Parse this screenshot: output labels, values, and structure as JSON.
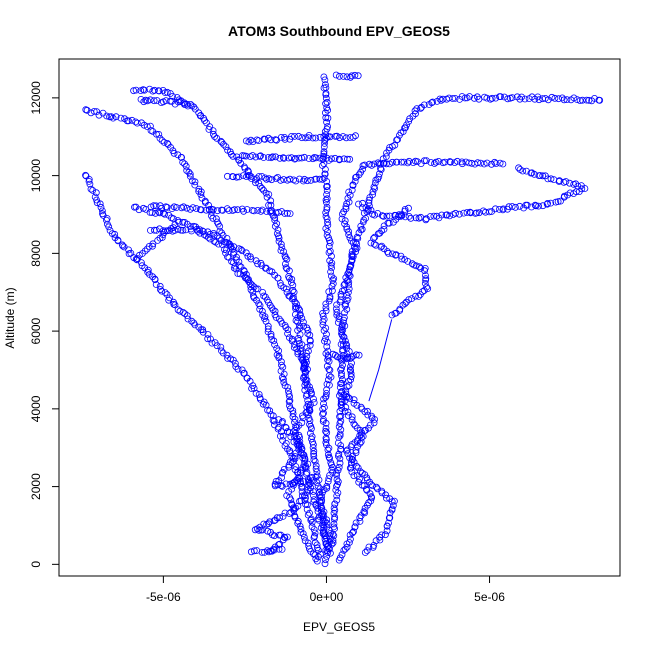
{
  "chart_data": {
    "type": "scatter",
    "title": "ATOM3 Southbound EPV_GEOS5",
    "xlabel": "EPV_GEOS5",
    "ylabel": "Altitude (m)",
    "xlim": [
      -8.2e-06,
      9e-06
    ],
    "ylim": [
      -300,
      13000
    ],
    "x_ticks": [
      {
        "value": -5e-06,
        "label": "-5e-06"
      },
      {
        "value": 0,
        "label": "0e+00"
      },
      {
        "value": 5e-06,
        "label": "5e-06"
      }
    ],
    "y_ticks": [
      {
        "value": 0,
        "label": "0"
      },
      {
        "value": 2000,
        "label": "2000"
      },
      {
        "value": 4000,
        "label": "4000"
      },
      {
        "value": 6000,
        "label": "6000"
      },
      {
        "value": 8000,
        "label": "8000"
      },
      {
        "value": 10000,
        "label": "10000"
      },
      {
        "value": 12000,
        "label": "12000"
      }
    ],
    "marker": "open-circle",
    "color": "#0000ff",
    "grid": false,
    "legend": "none",
    "series": [
      {
        "points": [
          [
            0.0,
            50
          ],
          [
            1e-07,
            800
          ],
          [
            -2e-07,
            1600
          ],
          [
            2e-07,
            2400
          ],
          [
            0.0,
            3200
          ],
          [
            -1e-07,
            4000
          ],
          [
            1e-07,
            4800
          ],
          [
            0.0,
            5600
          ],
          [
            -1e-07,
            6400
          ],
          [
            2e-07,
            7200
          ],
          [
            1e-07,
            8000
          ],
          [
            0.0,
            8800
          ],
          [
            0.0,
            9600
          ],
          [
            -1e-07,
            10400
          ],
          [
            0.0,
            11200
          ],
          [
            0.0,
            12000
          ],
          [
            -1e-07,
            12600
          ]
        ]
      },
      {
        "points": [
          [
            -3e-07,
            100
          ],
          [
            -8e-07,
            900
          ],
          [
            -1.2e-06,
            1800
          ],
          [
            -6e-07,
            2600
          ],
          [
            -1e-06,
            3400
          ],
          [
            -4e-07,
            4200
          ],
          [
            -7e-07,
            5000
          ],
          [
            -5e-07,
            5800
          ],
          [
            -9e-07,
            6600
          ],
          [
            -1.5e-06,
            7400
          ],
          [
            -2.5e-06,
            8000
          ],
          [
            -3.5e-06,
            8500
          ],
          [
            -5e-06,
            9000
          ],
          [
            -6e-06,
            9200
          ]
        ]
      },
      {
        "points": [
          [
            4e-07,
            120
          ],
          [
            9e-07,
            1000
          ],
          [
            1.4e-06,
            1700
          ],
          [
            7e-07,
            2500
          ],
          [
            1.1e-06,
            3300
          ],
          [
            5e-07,
            4100
          ],
          [
            8e-07,
            4900
          ],
          [
            6e-07,
            5700
          ],
          [
            3e-07,
            6500
          ],
          [
            6e-07,
            7300
          ],
          [
            9e-07,
            8100
          ],
          [
            5e-07,
            8900
          ],
          [
            8e-07,
            9800
          ],
          [
            1.2e-06,
            10300
          ],
          [
            3e-06,
            10350
          ],
          [
            5.5e-06,
            10300
          ]
        ]
      },
      {
        "points": [
          [
            -1.8e-06,
            300
          ],
          [
            -1.2e-06,
            700
          ],
          [
            -2.2e-06,
            900
          ],
          [
            -1e-06,
            1400
          ],
          [
            -4e-07,
            2200
          ],
          [
            -1.6e-06,
            2000
          ],
          [
            -8e-07,
            3000
          ],
          [
            -1.5e-06,
            3800
          ]
        ]
      },
      {
        "points": [
          [
            1.2e-06,
            300
          ],
          [
            1.8e-06,
            800
          ],
          [
            2.1e-06,
            1600
          ],
          [
            1.3e-06,
            2100
          ],
          [
            6e-07,
            2900
          ],
          [
            1.5e-06,
            3700
          ],
          [
            4e-07,
            4500
          ]
        ]
      },
      {
        "points": [
          [
            -2e-07,
            200
          ],
          [
            -5e-07,
            1200
          ],
          [
            -9e-07,
            2400
          ],
          [
            -1.3e-06,
            3200
          ],
          [
            -1.8e-06,
            4000
          ],
          [
            -2.6e-06,
            5000
          ],
          [
            -3.8e-06,
            6000
          ],
          [
            -4.8e-06,
            6800
          ],
          [
            -5.5e-06,
            7600
          ],
          [
            -6.5e-06,
            8400
          ],
          [
            -7.4e-06,
            10100
          ]
        ]
      },
      {
        "points": [
          [
            1e-07,
            300
          ],
          [
            -5e-07,
            2000
          ],
          [
            -1.5e-06,
            5500
          ],
          [
            -2.5e-06,
            7500
          ],
          [
            -3.5e-06,
            9000
          ],
          [
            -4.5e-06,
            10500
          ],
          [
            -5.5e-06,
            11300
          ],
          [
            -7.5e-06,
            11700
          ]
        ]
      },
      {
        "points": [
          [
            0.0,
            400
          ],
          [
            -4e-07,
            3000
          ],
          [
            -1e-06,
            7000
          ],
          [
            -1.8e-06,
            9500
          ],
          [
            -2.6e-06,
            10300
          ],
          [
            -3.4e-06,
            11000
          ],
          [
            -4e-06,
            11700
          ],
          [
            -5e-06,
            12200
          ],
          [
            -6e-06,
            12200
          ]
        ]
      },
      {
        "points": [
          [
            2e-07,
            500
          ],
          [
            4e-07,
            3000
          ],
          [
            5e-07,
            6000
          ],
          [
            8e-07,
            8000
          ],
          [
            1.2e-06,
            9000
          ],
          [
            1.8e-06,
            10500
          ],
          [
            2.8e-06,
            11700
          ],
          [
            3.6e-06,
            12000
          ],
          [
            6e-06,
            12000
          ],
          [
            8.5e-06,
            11950
          ]
        ]
      },
      {
        "points": [
          [
            1e-06,
            9300
          ],
          [
            1.5e-06,
            9000
          ],
          [
            3e-06,
            8900
          ],
          [
            5e-06,
            9100
          ],
          [
            7e-06,
            9300
          ],
          [
            7.9e-06,
            9700
          ],
          [
            7e-06,
            9900
          ],
          [
            5.8e-06,
            10200
          ]
        ]
      },
      {
        "points": [
          [
            2e-06,
            6400
          ],
          [
            2.4e-06,
            6700
          ],
          [
            3.1e-06,
            7100
          ],
          [
            3e-06,
            7600
          ],
          [
            2e-06,
            8000
          ],
          [
            1.4e-06,
            8300
          ],
          [
            1.8e-06,
            8700
          ],
          [
            2.6e-06,
            9200
          ]
        ]
      },
      {
        "points": [
          [
            -6e-07,
            5000
          ],
          [
            -1.2e-06,
            6000
          ],
          [
            -2e-06,
            7000
          ],
          [
            -2.7e-06,
            7500
          ],
          [
            -3.2e-06,
            8200
          ],
          [
            -4e-06,
            8600
          ],
          [
            -5.5e-06,
            8600
          ]
        ]
      },
      {
        "points": [
          [
            3e-07,
            12600
          ],
          [
            8e-07,
            12550
          ],
          [
            1.1e-06,
            12550
          ]
        ]
      },
      {
        "points": [
          [
            -5.4e-06,
            9200
          ],
          [
            -4e-06,
            9150
          ],
          [
            -2.5e-06,
            9100
          ],
          [
            -1e-06,
            9050
          ]
        ]
      },
      {
        "points": [
          [
            -3e-06,
            10000
          ],
          [
            -2e-06,
            9950
          ],
          [
            -1e-06,
            9900
          ],
          [
            0.0,
            9900
          ]
        ]
      },
      {
        "points": [
          [
            -2.5e-06,
            10900
          ],
          [
            -1.5e-06,
            10950
          ],
          [
            -5e-07,
            11000
          ],
          [
            1e-06,
            11000
          ]
        ]
      },
      {
        "points": [
          [
            -2.6e-06,
            10500
          ],
          [
            -1.8e-06,
            10500
          ],
          [
            -1e-06,
            10450
          ],
          [
            8e-07,
            10400
          ]
        ]
      },
      {
        "points": [
          [
            -4.2e-06,
            11850
          ],
          [
            -5e-06,
            11900
          ],
          [
            -5.8e-06,
            11950
          ]
        ]
      },
      {
        "points": [
          [
            -5.8e-06,
            7900
          ],
          [
            -5.2e-06,
            8300
          ],
          [
            -4.6e-06,
            8800
          ]
        ]
      },
      {
        "points": [
          [
            1e-06,
            5400
          ],
          [
            5e-07,
            5300
          ],
          [
            0.0,
            5400
          ]
        ]
      },
      {
        "points": [
          [
            -2.3e-06,
            300
          ],
          [
            -1.8e-06,
            350
          ],
          [
            -1.3e-06,
            400
          ]
        ]
      }
    ],
    "connector_line": [
      [
        1.3e-06,
        4200
      ],
      [
        1.6e-06,
        5000
      ],
      [
        2e-06,
        6300
      ]
    ]
  }
}
